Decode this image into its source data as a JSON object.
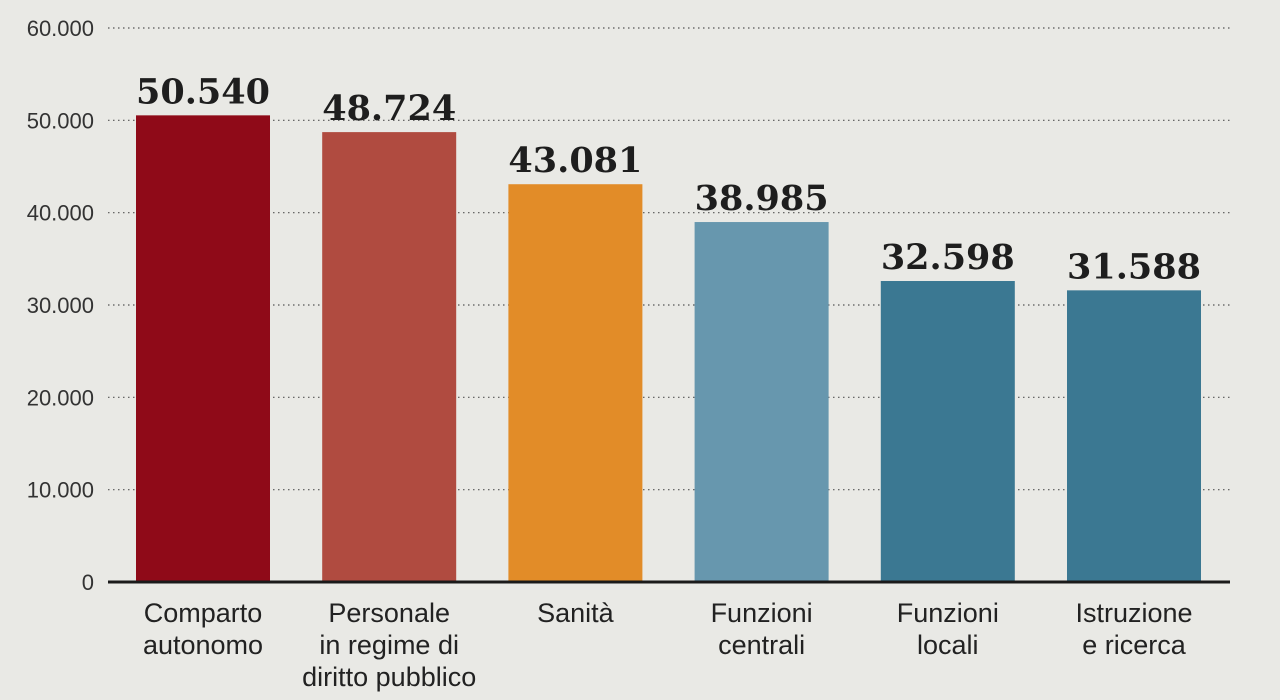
{
  "chart_data": {
    "type": "bar",
    "categories": [
      [
        "Comparto",
        "autonomo"
      ],
      [
        "Personale",
        "in regime di",
        "diritto pubblico"
      ],
      [
        "Sanità"
      ],
      [
        "Funzioni",
        "centrali"
      ],
      [
        "Funzioni",
        "locali"
      ],
      [
        "Istruzione",
        "e ricerca"
      ]
    ],
    "values": [
      50540,
      48724,
      43081,
      38985,
      32598,
      31588
    ],
    "value_labels": [
      "50.540",
      "48.724",
      "43.081",
      "38.985",
      "32.598",
      "31.588"
    ],
    "colors": [
      "#8f0a18",
      "#b04b40",
      "#e28c28",
      "#6797ae",
      "#3b7892",
      "#3b7892"
    ],
    "ylim": [
      0,
      60000
    ],
    "yticks": [
      0,
      10000,
      20000,
      30000,
      40000,
      50000,
      60000
    ],
    "ytick_labels": [
      "0",
      "10.000",
      "20.000",
      "30.000",
      "40.000",
      "50.000",
      "60.000"
    ],
    "grid": true,
    "title": "",
    "xlabel": "",
    "ylabel": ""
  }
}
